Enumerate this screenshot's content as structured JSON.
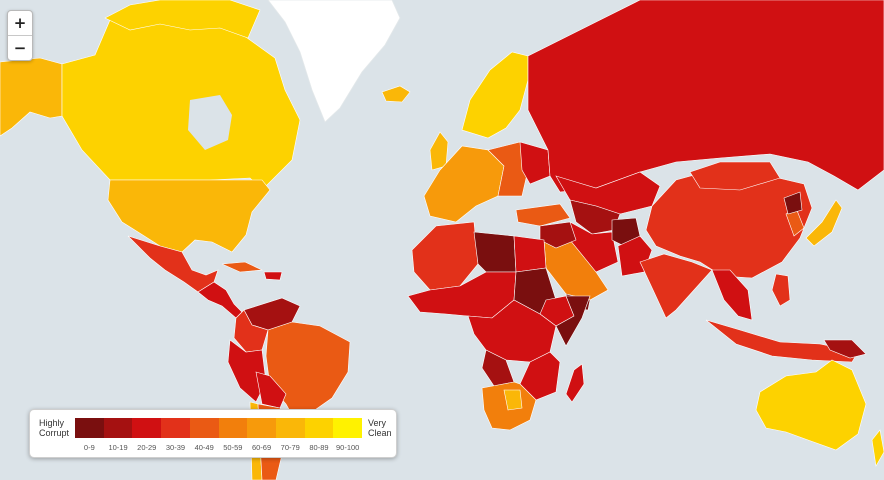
{
  "zoom": {
    "in_label": "+",
    "out_label": "−"
  },
  "legend": {
    "left_line1": "Highly",
    "left_line2": "Corrupt",
    "right_line1": "Very",
    "right_line2": "Clean",
    "ranges": [
      {
        "label": "0-9",
        "color": "#7a0f0f"
      },
      {
        "label": "10-19",
        "color": "#a51111"
      },
      {
        "label": "20-29",
        "color": "#d01012"
      },
      {
        "label": "30-39",
        "color": "#e2311a"
      },
      {
        "label": "40-49",
        "color": "#ea5a14"
      },
      {
        "label": "50-59",
        "color": "#f27f0c"
      },
      {
        "label": "60-69",
        "color": "#f79a0b"
      },
      {
        "label": "70-79",
        "color": "#fab708"
      },
      {
        "label": "80-89",
        "color": "#fdd200"
      },
      {
        "label": "90-100",
        "color": "#fff200"
      }
    ]
  },
  "map": {
    "ocean_color": "#dbe3e8",
    "ice_color": "#ffffff"
  }
}
